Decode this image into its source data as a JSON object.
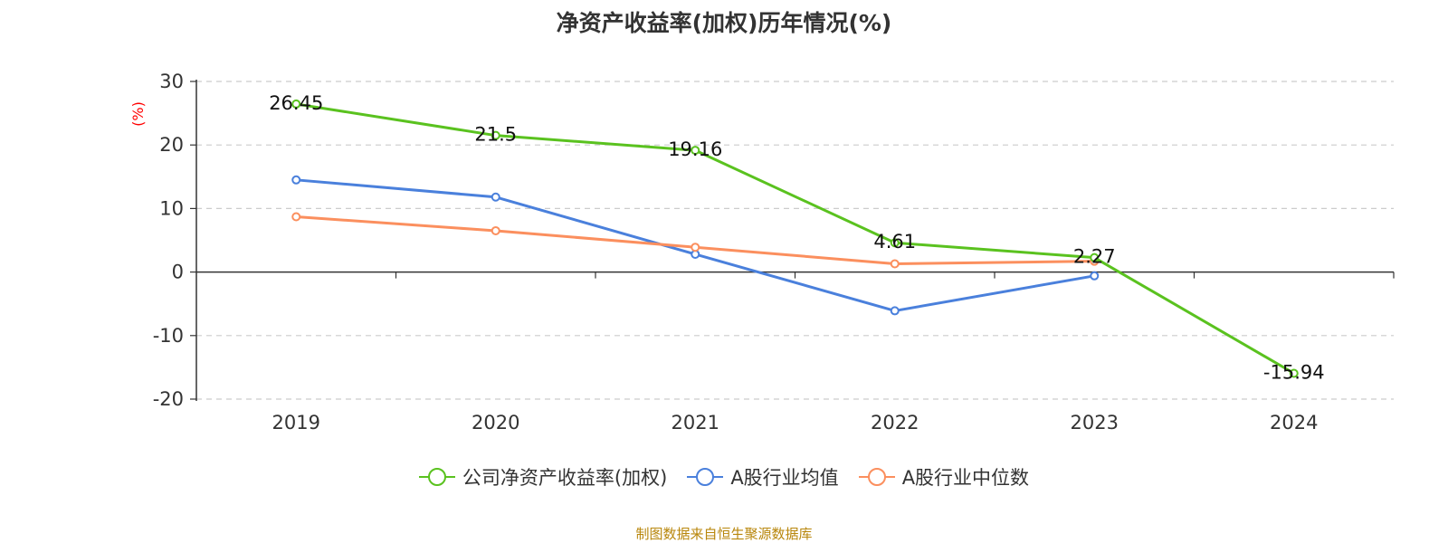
{
  "chart_data": {
    "type": "line",
    "title": "净资产收益率(加权)历年情况(%)",
    "ylabel": "(%)",
    "xlabel": "",
    "categories": [
      "2019",
      "2020",
      "2021",
      "2022",
      "2023",
      "2024"
    ],
    "ylim": [
      -20,
      30
    ],
    "yticks": [
      30,
      20,
      10,
      0,
      -10,
      -20
    ],
    "grid": true,
    "legend_position": "bottom",
    "series": [
      {
        "name": "公司净资产收益率(加权)",
        "color": "#5ac21f",
        "values": [
          26.45,
          21.5,
          19.16,
          4.61,
          2.27,
          -15.94
        ],
        "labels": [
          "26.45",
          "21.5",
          "19.16",
          "4.61",
          "2.27",
          "-15.94"
        ]
      },
      {
        "name": "A股行业均值",
        "color": "#4a80dc",
        "values": [
          14.5,
          11.8,
          2.8,
          -6.1,
          -0.6,
          null
        ]
      },
      {
        "name": "A股行业中位数",
        "color": "#fb8f5e",
        "values": [
          8.7,
          6.5,
          3.9,
          1.3,
          1.7,
          null
        ]
      }
    ],
    "source": "制图数据来自恒生聚源数据库"
  },
  "colors": {
    "axis": "#333333",
    "grid": "#cccccc",
    "ylabel": "#ff0000",
    "source": "#b8860b"
  }
}
